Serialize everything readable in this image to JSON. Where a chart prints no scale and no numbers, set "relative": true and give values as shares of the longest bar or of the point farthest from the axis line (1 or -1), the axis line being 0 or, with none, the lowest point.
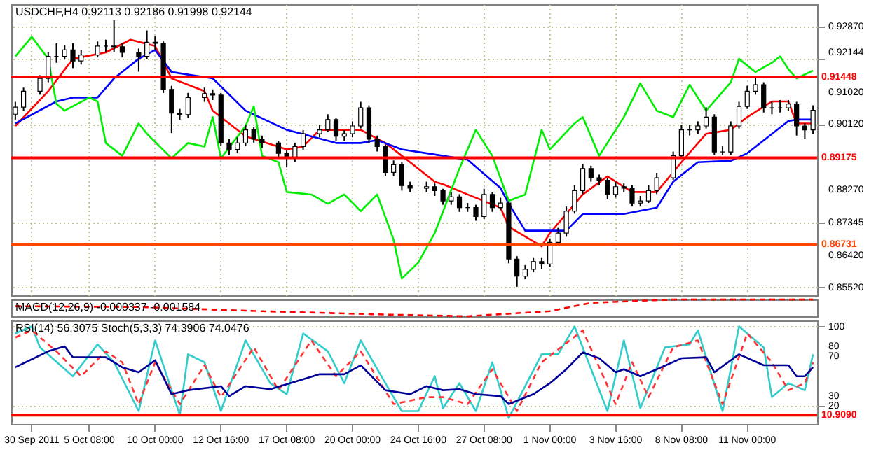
{
  "chart_data": [
    {
      "type": "candlestick",
      "title": "USDCHF,H4  0.92113 0.92186 0.91998 0.92144",
      "categories": [
        null,
        null,
        null,
        null,
        null,
        null,
        null,
        null,
        null,
        null,
        null,
        null,
        null,
        null,
        null,
        null,
        null,
        null,
        null,
        null,
        null,
        null,
        null,
        null,
        null,
        null,
        null,
        null,
        null,
        null,
        null,
        null,
        null,
        null,
        null,
        null,
        null,
        null,
        null,
        null,
        null,
        null,
        null,
        null,
        null,
        null,
        null,
        null,
        null,
        null,
        null,
        null,
        null,
        null,
        null,
        null,
        null,
        null,
        null,
        null,
        null,
        null,
        null,
        null,
        null,
        null,
        null,
        null,
        null,
        null,
        null,
        null,
        null,
        null,
        null,
        null,
        null,
        null,
        null,
        null,
        null,
        null,
        null,
        null,
        null,
        null,
        null,
        null,
        null,
        null,
        null,
        null,
        null,
        null,
        null,
        null,
        null,
        null
      ],
      "ohlc": [
        [
          0.904,
          0.9075,
          0.9025,
          0.906
        ],
        [
          0.906,
          0.9115,
          0.905,
          0.9105
        ],
        null,
        [
          0.9105,
          0.915,
          0.9095,
          0.9141
        ],
        [
          0.9141,
          0.9215,
          0.913,
          0.9203
        ],
        [
          0.9203,
          0.924,
          0.9185,
          0.9203
        ],
        [
          0.9203,
          0.9235,
          0.9195,
          0.9221
        ],
        [
          0.9221,
          0.924,
          0.917,
          0.919
        ],
        [
          0.919,
          0.922,
          0.918,
          0.9207
        ],
        null,
        [
          0.9207,
          0.9245,
          0.92,
          0.9232
        ],
        [
          0.9232,
          0.925,
          0.9215,
          0.9232
        ],
        [
          0.9232,
          0.9305,
          0.9215,
          0.923
        ],
        [
          0.923,
          0.924,
          0.92,
          0.9214
        ],
        null,
        [
          0.9214,
          0.9225,
          0.916,
          0.9203
        ],
        [
          0.9203,
          0.9276,
          0.9195,
          0.9243
        ],
        [
          0.9243,
          0.926,
          0.922,
          0.924
        ],
        [
          0.924,
          0.9245,
          0.91,
          0.911
        ],
        [
          0.911,
          0.912,
          0.8987,
          0.9043
        ],
        [
          0.9043,
          0.9055,
          0.9025,
          0.9039
        ],
        [
          0.9039,
          0.91,
          0.903,
          0.9087
        ],
        null,
        [
          0.9087,
          0.9115,
          0.9075,
          0.9098
        ],
        [
          0.9098,
          0.911,
          0.908,
          0.9094
        ],
        [
          0.9094,
          0.91,
          0.895,
          0.8959
        ],
        [
          0.8959,
          0.897,
          0.8925,
          0.8941
        ],
        [
          0.8941,
          0.8975,
          0.893,
          0.8959
        ],
        [
          0.8959,
          0.901,
          0.895,
          0.8996
        ],
        [
          0.8996,
          0.9005,
          0.896,
          0.897
        ],
        [
          0.897,
          0.898,
          0.8945,
          0.8959
        ],
        null,
        [
          0.8959,
          0.8965,
          0.892,
          0.893
        ],
        [
          0.893,
          0.894,
          0.889,
          0.8916
        ],
        [
          0.8916,
          0.896,
          0.8905,
          0.8949
        ],
        [
          0.8949,
          0.8995,
          0.894,
          0.8985
        ],
        null,
        [
          0.8985,
          0.901,
          0.8975,
          0.8996
        ],
        [
          0.8996,
          0.904,
          0.899,
          0.9025
        ],
        [
          0.9025,
          0.903,
          0.8965,
          0.8978
        ],
        [
          0.8978,
          0.8995,
          0.8965,
          0.8985
        ],
        [
          0.8985,
          0.902,
          0.8975,
          0.9007
        ],
        [
          0.9007,
          0.9075,
          0.9,
          0.9058
        ],
        [
          0.9058,
          0.9065,
          0.896,
          0.897
        ],
        [
          0.897,
          0.898,
          0.8935,
          0.8949
        ],
        [
          0.8949,
          0.8955,
          0.8865,
          0.8876
        ],
        [
          0.8876,
          0.891,
          0.8865,
          0.8898
        ],
        [
          0.8898,
          0.8905,
          0.8825,
          0.8839
        ],
        [
          0.8839,
          0.885,
          0.882,
          0.8832
        ],
        null,
        [
          0.8832,
          0.885,
          0.882,
          0.8836
        ],
        [
          0.8836,
          0.8845,
          0.881,
          0.8825
        ],
        [
          0.8825,
          0.883,
          0.8785,
          0.8796
        ],
        [
          0.8796,
          0.882,
          0.8785,
          0.8807
        ],
        [
          0.8807,
          0.8815,
          0.8765,
          0.8777
        ],
        [
          0.8777,
          0.879,
          0.8765,
          0.8777
        ],
        [
          0.8777,
          0.8785,
          0.874,
          0.8752
        ],
        [
          0.8752,
          0.883,
          0.8745,
          0.8814
        ],
        [
          0.8814,
          0.882,
          0.8765,
          0.8777
        ],
        [
          0.8777,
          0.8805,
          0.877,
          0.879
        ],
        [
          0.879,
          0.8795,
          0.862,
          0.8632
        ],
        [
          0.8632,
          0.864,
          0.8554,
          0.8584
        ],
        [
          0.8584,
          0.8615,
          0.8575,
          0.8603
        ],
        [
          0.8603,
          0.8635,
          0.8595,
          0.8625
        ],
        [
          0.8625,
          0.8635,
          0.8605,
          0.8618
        ],
        [
          0.8618,
          0.869,
          0.861,
          0.8679
        ],
        [
          0.8679,
          0.872,
          0.867,
          0.8705
        ],
        [
          0.8705,
          0.878,
          0.8695,
          0.8767
        ],
        [
          0.8767,
          0.884,
          0.876,
          0.8825
        ],
        [
          0.8825,
          0.89,
          0.8815,
          0.8887
        ],
        [
          0.8887,
          0.8895,
          0.885,
          0.8861
        ],
        [
          0.8861,
          0.887,
          0.884,
          0.8854
        ],
        [
          0.8854,
          0.886,
          0.88,
          0.8814
        ],
        [
          0.8814,
          0.885,
          0.8805,
          0.8836
        ],
        [
          0.8836,
          0.8845,
          0.882,
          0.8832
        ],
        [
          0.8832,
          0.884,
          0.878,
          0.879
        ],
        [
          0.879,
          0.881,
          0.878,
          0.8796
        ],
        [
          0.8796,
          0.884,
          0.879,
          0.8825
        ],
        [
          0.8825,
          0.8875,
          0.8815,
          0.8861
        ],
        null,
        [
          0.8861,
          0.8935,
          0.8855,
          0.8923
        ],
        [
          0.8923,
          0.901,
          0.8915,
          0.8996
        ],
        [
          0.8996,
          0.901,
          0.898,
          0.8996
        ],
        [
          0.8996,
          0.902,
          0.8985,
          0.9007
        ],
        [
          0.9007,
          0.906,
          0.9,
          0.9032
        ],
        [
          0.9032,
          0.904,
          0.8925,
          0.8934
        ],
        [
          0.8934,
          0.895,
          0.8925,
          0.8934
        ],
        [
          0.8934,
          0.902,
          0.8925,
          0.9007
        ],
        [
          0.9007,
          0.9075,
          0.9,
          0.9062
        ],
        [
          0.9062,
          0.912,
          0.9055,
          0.9105
        ],
        [
          0.9105,
          0.9141,
          0.9095,
          0.9123
        ],
        [
          0.9123,
          0.913,
          0.9045,
          0.9058
        ],
        [
          0.9058,
          0.9075,
          0.904,
          0.9058
        ],
        [
          0.9058,
          0.908,
          0.9045,
          0.9058
        ],
        [
          0.9058,
          0.908,
          0.905,
          0.9069
        ],
        [
          0.9069,
          0.9075,
          0.898,
          0.9007
        ],
        [
          0.9007,
          0.9015,
          0.897,
          0.8996
        ],
        [
          0.8996,
          0.9065,
          0.8985,
          0.9051
        ]
      ],
      "series": [
        {
          "type": "line",
          "color": "#ff0000",
          "values": [
            0.9007,
            null,
            null,
            null,
            0.9105,
            null,
            null,
            0.9196,
            null,
            null,
            null,
            0.9214,
            null,
            null,
            0.925,
            null,
            null,
            0.9232,
            null,
            0.9141,
            null,
            null,
            null,
            0.9105,
            0.905,
            null,
            null,
            null,
            0.8978,
            null,
            null,
            null,
            null,
            0.8941,
            null,
            0.8949,
            null,
            0.8996,
            null,
            null,
            null,
            null,
            0.8996,
            null,
            null,
            0.8959,
            null,
            null,
            0.8905,
            null,
            null,
            0.885,
            0.8843,
            null,
            null,
            0.8814,
            null,
            null,
            null,
            0.8777,
            0.8723,
            null,
            null,
            null,
            0.8668,
            0.8705,
            null,
            null,
            null,
            0.8814,
            null,
            null,
            0.8865,
            null,
            null,
            0.8821,
            null,
            null,
            0.8821,
            null,
            null,
            0.8905,
            null,
            null,
            0.8985,
            null,
            null,
            0.8996,
            null,
            0.9032,
            null,
            null,
            0.9076,
            null,
            0.9076,
            0.9014,
            null,
            0.9014
          ]
        },
        {
          "type": "line",
          "color": "#0000ff",
          "values": [
            0.9014,
            null,
            null,
            null,
            null,
            0.9076,
            null,
            0.9087,
            null,
            null,
            0.9087,
            null,
            0.9141,
            null,
            null,
            0.9196,
            null,
            0.9221,
            null,
            0.9159,
            null,
            null,
            null,
            null,
            0.9141,
            null,
            null,
            null,
            0.905,
            null,
            null,
            null,
            null,
            0.8996,
            null,
            null,
            null,
            null,
            null,
            0.8959,
            null,
            null,
            0.8959,
            null,
            0.8967,
            null,
            null,
            0.8941,
            null,
            null,
            null,
            null,
            0.8923,
            null,
            null,
            0.8912,
            null,
            null,
            null,
            0.8832,
            0.8788,
            null,
            0.8712,
            null,
            null,
            null,
            null,
            0.8712,
            null,
            0.8759,
            null,
            null,
            null,
            null,
            0.8759,
            null,
            null,
            null,
            0.8777,
            null,
            0.885,
            null,
            0.8887,
            0.8905,
            null,
            null,
            null,
            0.8909,
            null,
            0.893,
            null,
            null,
            null,
            null,
            0.9021,
            0.9025,
            null,
            0.9025
          ]
        },
        {
          "type": "line",
          "color": "#00ee00",
          "values": [
            0.9203,
            null,
            0.9258,
            null,
            0.9196,
            0.9069,
            0.905,
            null,
            null,
            0.9087,
            0.9076,
            0.8959,
            null,
            0.8923,
            null,
            0.9014,
            0.8985,
            null,
            null,
            0.8916,
            null,
            0.8959,
            null,
            0.8949,
            0.9032,
            0.8916,
            null,
            null,
            0.9007,
            0.9062,
            0.8923,
            null,
            0.8905,
            0.8821,
            null,
            null,
            0.8814,
            null,
            0.8788,
            null,
            0.8814,
            null,
            0.8767,
            null,
            0.8814,
            null,
            0.8686,
            0.8577,
            null,
            0.8622,
            null,
            0.8705,
            null,
            null,
            0.8887,
            null,
            0.8996,
            null,
            0.8923,
            null,
            0.8796,
            null,
            0.8814,
            null,
            0.8996,
            0.8941,
            null,
            null,
            0.9014,
            0.9032,
            null,
            0.8923,
            null,
            null,
            0.9032,
            null,
            0.9127,
            null,
            0.905,
            null,
            0.9032,
            null,
            0.9123,
            null,
            0.905,
            null,
            null,
            0.913,
            0.9196,
            null,
            0.9159,
            null,
            0.9185,
            0.9203,
            0.9167,
            0.9141,
            null,
            0.9163
          ]
        }
      ],
      "ylim": [
        0.853,
        0.935
      ],
      "yticks": [
        {
          "value": 0.9287,
          "label": "0.92870"
        },
        {
          "value": 0.92144,
          "label": "0.92144"
        },
        {
          "value": 0.91945,
          "label": null
        },
        {
          "value": 0.9102,
          "label": "0.91020"
        },
        {
          "value": 0.9012,
          "label": "0.90120"
        },
        {
          "value": 0.8827,
          "label": "0.88270"
        },
        0.87345,
        {
          "value": 0.8642,
          "label": "0.86420"
        },
        {
          "value": 0.8552,
          "label": "0.85520"
        }
      ],
      "tick_labels": "y",
      "grid": true,
      "ref_lines": [
        {
          "axis": "y",
          "value": 0.91448,
          "label": "0.91448",
          "color": "#ff0000"
        },
        {
          "axis": "y",
          "value": 0.89175,
          "label": "0.89175",
          "color": "#ff0000"
        },
        {
          "axis": "y",
          "value": 0.86731,
          "label": "0.86731",
          "color": "#ff4500"
        }
      ]
    },
    {
      "type": "line",
      "title": "MACD(12,26,9) -0.000337 -0.001584",
      "relative": true,
      "categories": [
        null,
        null,
        null,
        null,
        null,
        null,
        null,
        null,
        null,
        null,
        null,
        null,
        null,
        null,
        null,
        null,
        null,
        null,
        null,
        null,
        null,
        null,
        null,
        null,
        null,
        null,
        null,
        null,
        null,
        null,
        null,
        null,
        null,
        null,
        null,
        null,
        null,
        null,
        null,
        null,
        null,
        null,
        null,
        null,
        null,
        null,
        null,
        null,
        null,
        null,
        null,
        null,
        null,
        null,
        null,
        null,
        null,
        null,
        null,
        null,
        null,
        null,
        null,
        null,
        null,
        null,
        null,
        null,
        null,
        null,
        null,
        null,
        null,
        null,
        null,
        null,
        null,
        null,
        null,
        null,
        null,
        null,
        null,
        null,
        null,
        null,
        null,
        null,
        null,
        null,
        null,
        null,
        null,
        null,
        null,
        null,
        null,
        null
      ],
      "series": [
        {
          "color": "#ff0000",
          "line_style": "dashed",
          "values": [
            0.6,
            null,
            null,
            null,
            null,
            null,
            null,
            null,
            null,
            null,
            null,
            null,
            null,
            null,
            null,
            0.55,
            null,
            null,
            null,
            null,
            null,
            null,
            null,
            null,
            null,
            null,
            null,
            null,
            null,
            null,
            0.3,
            null,
            null,
            null,
            null,
            null,
            null,
            null,
            null,
            null,
            null,
            null,
            null,
            null,
            null,
            0.1,
            null,
            null,
            null,
            null,
            null,
            null,
            null,
            null,
            null,
            0,
            null,
            null,
            null,
            null,
            null,
            null,
            null,
            null,
            null,
            0.3,
            null,
            null,
            null,
            null,
            0.8,
            null,
            null,
            null,
            null,
            null,
            null,
            null,
            null,
            null,
            1,
            null,
            null,
            null,
            null,
            null,
            null,
            null,
            null,
            null,
            null,
            null,
            null,
            null,
            null,
            null,
            null,
            1
          ]
        }
      ],
      "tick_labels": false
    },
    {
      "type": "line",
      "title": "RSI(14) 56.3075 Stoch(5,3,3) 74.3906 74.0476",
      "categories": [
        null,
        null,
        "30 Sep 2011",
        null,
        null,
        null,
        null,
        null,
        null,
        "5 Oct 08:00",
        null,
        null,
        null,
        null,
        null,
        null,
        null,
        "10 Oct 00:00",
        null,
        null,
        null,
        null,
        null,
        null,
        null,
        "12 Oct 16:00",
        null,
        null,
        null,
        null,
        null,
        null,
        null,
        "17 Oct 08:00",
        null,
        null,
        null,
        null,
        null,
        null,
        null,
        "20 Oct 00:00",
        null,
        null,
        null,
        null,
        null,
        null,
        null,
        "24 Oct 16:00",
        null,
        null,
        null,
        null,
        null,
        null,
        null,
        "27 Oct 08:00",
        null,
        null,
        null,
        null,
        null,
        null,
        null,
        "1 Nov 00:00",
        null,
        null,
        null,
        null,
        null,
        null,
        null,
        "3 Nov 16:00",
        null,
        null,
        null,
        null,
        null,
        null,
        null,
        "8 Nov 08:00",
        null,
        null,
        null,
        null,
        null,
        null,
        null,
        "11 Nov 00:00",
        null,
        null,
        null,
        null,
        null,
        null,
        null,
        null
      ],
      "series": [
        {
          "color": "#33cccc",
          "values": [
            93,
            null,
            100,
            79,
            null,
            null,
            null,
            50,
            null,
            null,
            82,
            null,
            64,
            null,
            null,
            15,
            null,
            86,
            null,
            null,
            11,
            72,
            null,
            64,
            null,
            15,
            null,
            null,
            86,
            null,
            null,
            43,
            null,
            32,
            null,
            93,
            null,
            null,
            75,
            null,
            43,
            null,
            86,
            null,
            null,
            43,
            null,
            15,
            null,
            15,
            null,
            50,
            18,
            null,
            43,
            null,
            15,
            null,
            64,
            null,
            8,
            null,
            null,
            null,
            72,
            null,
            72,
            null,
            100,
            null,
            null,
            null,
            15,
            null,
            86,
            null,
            18,
            null,
            null,
            79,
            null,
            null,
            82,
            96,
            null,
            null,
            15,
            null,
            100,
            null,
            null,
            79,
            29,
            null,
            43,
            null,
            36,
            72
          ]
        },
        {
          "color": "#ff3333",
          "line_style": "dashed",
          "values": [
            89,
            null,
            96,
            null,
            null,
            75,
            null,
            null,
            50,
            null,
            null,
            75,
            null,
            64,
            null,
            22,
            null,
            64,
            null,
            null,
            22,
            null,
            null,
            61,
            null,
            29,
            null,
            null,
            null,
            79,
            null,
            null,
            36,
            null,
            null,
            null,
            86,
            null,
            null,
            50,
            null,
            null,
            75,
            null,
            null,
            null,
            22,
            null,
            null,
            null,
            29,
            null,
            29,
            null,
            null,
            22,
            null,
            null,
            57,
            null,
            null,
            15,
            null,
            null,
            64,
            null,
            null,
            null,
            null,
            96,
            null,
            null,
            null,
            22,
            null,
            64,
            null,
            29,
            null,
            null,
            79,
            null,
            null,
            86,
            null,
            null,
            22,
            null,
            null,
            93,
            null,
            null,
            64,
            null,
            36,
            null,
            43,
            64
          ]
        },
        {
          "color": "#000099",
          "values": [
            59,
            null,
            null,
            null,
            75,
            null,
            80,
            69,
            null,
            null,
            null,
            69,
            null,
            59,
            null,
            54,
            null,
            66,
            null,
            32,
            null,
            36,
            null,
            null,
            null,
            40,
            30,
            null,
            40,
            null,
            null,
            37,
            null,
            null,
            null,
            47,
            null,
            52,
            null,
            null,
            52,
            null,
            61,
            null,
            null,
            36,
            null,
            null,
            32,
            null,
            40,
            null,
            36,
            null,
            37,
            null,
            32,
            null,
            null,
            30,
            22,
            null,
            null,
            32,
            null,
            43,
            null,
            57,
            null,
            74,
            null,
            68,
            null,
            54,
            57,
            null,
            50,
            null,
            57,
            null,
            null,
            68,
            null,
            null,
            69,
            54,
            null,
            null,
            72,
            null,
            null,
            61,
            null,
            null,
            61,
            50,
            50,
            59
          ]
        }
      ],
      "ylim": [
        2,
        106
      ],
      "yticks": [
        20,
        30,
        70,
        80,
        100
      ],
      "grid": "y",
      "ref_lines": [
        {
          "axis": "y",
          "value": 10.909,
          "label": "10.9090",
          "color": "#ff0000"
        }
      ]
    }
  ]
}
